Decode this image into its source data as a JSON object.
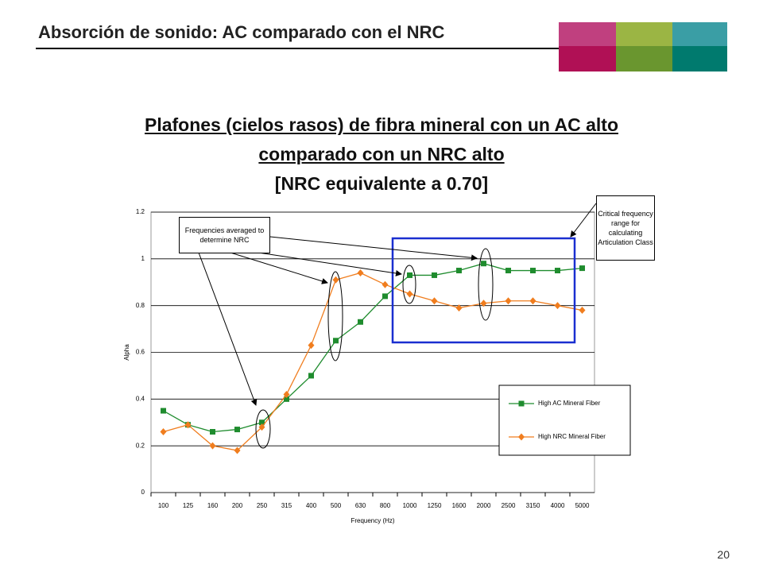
{
  "header": {
    "title": "Absorción de sonido: AC comparado con el NRC"
  },
  "headline": [
    "Plafones (cielos rasos) de fibra mineral con un AC alto",
    "comparado con un NRC alto",
    "[NRC equivalente a 0.70]"
  ],
  "page_number": "20",
  "chart_data": {
    "type": "line",
    "x_label": "Frequency (Hz)",
    "y_label": "Alpha",
    "categories": [
      "100",
      "125",
      "160",
      "200",
      "250",
      "315",
      "400",
      "500",
      "630",
      "800",
      "1000",
      "1250",
      "1600",
      "2000",
      "2500",
      "3150",
      "4000",
      "5000"
    ],
    "series": [
      {
        "name": "High AC Mineral Fiber",
        "color": "#1f8c2e",
        "marker": "square",
        "values": [
          0.35,
          0.29,
          0.26,
          0.27,
          0.3,
          0.4,
          0.5,
          0.65,
          0.73,
          0.84,
          0.93,
          0.93,
          0.95,
          0.98,
          0.95,
          0.95,
          0.95,
          0.96
        ]
      },
      {
        "name": "High NRC Mineral Fiber",
        "color": "#f07d1e",
        "marker": "diamond",
        "values": [
          0.26,
          0.29,
          0.2,
          0.18,
          0.28,
          0.42,
          0.63,
          0.91,
          0.94,
          0.89,
          0.85,
          0.82,
          0.79,
          0.81,
          0.82,
          0.82,
          0.8,
          0.78
        ]
      }
    ],
    "ylim": [
      0,
      1.2
    ],
    "yticks": [
      0,
      0.2,
      0.4,
      0.6,
      0.8,
      1,
      1.2
    ],
    "grid": true,
    "annotations": [
      "Frequencies averaged to determine NRC",
      "Critical frequency range for calculating Articulation Class"
    ]
  }
}
